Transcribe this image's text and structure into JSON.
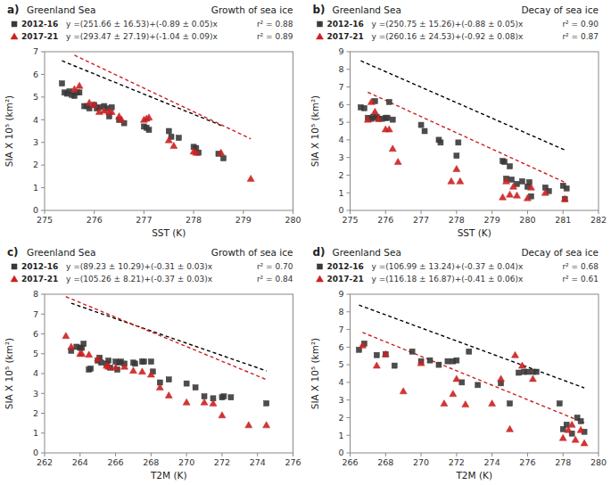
{
  "chart_data": [
    {
      "type": "scatter",
      "title": "Greenland Sea",
      "subtitle": "Growth of sea ice",
      "x_label": "SST (K)",
      "y_label": "SIA X 10⁵ (km²)",
      "annotations": [
        "a)",
        "y =(251.66 ± 16.53)+(-0.89 ± 0.05)x",
        "r² = 0.88",
        "y =(293.47 ± 27.19)+(-1.04 ± 0.09)x",
        "r² = 0.89"
      ],
      "xlim": [
        275,
        280
      ],
      "ylim": [
        0,
        7
      ],
      "xticks": [
        275,
        276,
        277,
        278,
        279,
        280
      ],
      "yticks": [
        0,
        1,
        2,
        3,
        4,
        5,
        6,
        7
      ],
      "grid": false,
      "legend": "top",
      "series": [
        {
          "name": "2012-16",
          "type": "scatter",
          "color": "#3a3a3a",
          "marker": "square",
          "x": [
            275.35,
            275.4,
            275.45,
            275.5,
            275.55,
            275.6,
            275.65,
            275.7,
            275.8,
            275.85,
            275.9,
            276.0,
            276.05,
            276.1,
            276.2,
            276.25,
            276.3,
            276.35,
            276.5,
            276.6,
            277.0,
            277.05,
            277.1,
            277.5,
            277.55,
            277.7,
            278.0,
            278.05,
            278.1,
            278.5,
            278.6
          ],
          "values": [
            5.6,
            5.2,
            5.15,
            5.25,
            5.1,
            5.05,
            5.2,
            5.2,
            4.6,
            4.6,
            4.5,
            4.65,
            4.5,
            4.55,
            4.6,
            4.5,
            4.15,
            4.55,
            4.0,
            3.85,
            3.7,
            3.65,
            3.55,
            3.5,
            3.25,
            3.2,
            2.8,
            2.75,
            2.55,
            2.5,
            2.3
          ]
        },
        {
          "name": "2017-21",
          "type": "scatter",
          "color": "#cc2020",
          "marker": "triangle",
          "x": [
            275.6,
            275.7,
            275.9,
            276.0,
            276.1,
            276.2,
            276.3,
            276.35,
            276.5,
            276.55,
            277.0,
            277.05,
            277.1,
            277.5,
            277.6,
            278.0,
            278.05,
            278.55,
            279.15
          ],
          "values": [
            5.35,
            5.5,
            4.75,
            4.65,
            4.35,
            4.4,
            4.35,
            4.35,
            4.15,
            4.0,
            4.0,
            4.05,
            4.1,
            3.1,
            2.85,
            2.6,
            2.55,
            2.55,
            1.4
          ]
        },
        {
          "type": "line",
          "color": "#000000",
          "line_style": "dashed",
          "x": [
            275.35,
            278.6
          ],
          "values": [
            6.5985,
            3.706
          ]
        },
        {
          "type": "line",
          "color": "#cc2020",
          "line_style": "dashed",
          "x": [
            275.6,
            279.15
          ],
          "values": [
            6.846,
            3.154
          ]
        }
      ]
    },
    {
      "type": "scatter",
      "title": "Greenland Sea",
      "subtitle": "Decay of sea ice",
      "x_label": "SST (K)",
      "y_label": "SIA X 10⁵ (km²)",
      "annotations": [
        "b)",
        "y =(250.75 ± 15.26)+(-0.88 ± 0.05)x",
        "r² = 0.90",
        "y =(260.16 ± 24.53)+(-0.92 ± 0.08)x",
        "r² = 0.87"
      ],
      "xlim": [
        275,
        282
      ],
      "ylim": [
        0,
        9
      ],
      "xticks": [
        275,
        276,
        277,
        278,
        279,
        280,
        281,
        282
      ],
      "yticks": [
        0,
        1,
        2,
        3,
        4,
        5,
        6,
        7,
        8,
        9
      ],
      "grid": false,
      "legend": "top",
      "series": [
        {
          "name": "2012-16",
          "type": "scatter",
          "color": "#3a3a3a",
          "marker": "square",
          "x": [
            275.3,
            275.4,
            275.5,
            275.6,
            275.65,
            275.7,
            275.75,
            275.8,
            275.9,
            276.0,
            276.05,
            276.1,
            276.2,
            277.0,
            277.1,
            277.5,
            277.55,
            278.0,
            278.05,
            279.3,
            279.35,
            279.4,
            279.5,
            279.55,
            279.7,
            279.85,
            280.0,
            280.05,
            280.1,
            280.5,
            280.6,
            281.0,
            281.05,
            281.1
          ],
          "values": [
            5.85,
            5.8,
            5.25,
            5.2,
            5.3,
            6.2,
            5.3,
            5.2,
            5.2,
            5.25,
            5.25,
            6.15,
            5.15,
            4.85,
            4.5,
            4.0,
            3.85,
            3.1,
            3.85,
            2.8,
            2.75,
            1.8,
            2.5,
            1.75,
            1.5,
            1.65,
            1.35,
            1.6,
            0.8,
            1.3,
            1.1,
            1.4,
            0.65,
            1.25
          ]
        },
        {
          "name": "2017-21",
          "type": "scatter",
          "color": "#cc2020",
          "marker": "triangle",
          "x": [
            275.5,
            275.6,
            275.7,
            275.8,
            276.0,
            276.1,
            276.2,
            276.35,
            277.85,
            278.0,
            278.1,
            279.3,
            279.4,
            279.5,
            279.6,
            279.7,
            280.0,
            280.1,
            280.5,
            281.05
          ],
          "values": [
            5.15,
            6.15,
            5.6,
            5.2,
            4.6,
            4.6,
            3.5,
            2.75,
            1.65,
            2.35,
            1.65,
            0.75,
            1.65,
            0.9,
            1.35,
            0.85,
            0.7,
            1.3,
            1.0,
            0.65
          ]
        },
        {
          "type": "line",
          "color": "#000000",
          "line_style": "dashed",
          "x": [
            275.3,
            281.1
          ],
          "values": [
            8.486,
            3.382
          ]
        },
        {
          "type": "line",
          "color": "#cc2020",
          "line_style": "dashed",
          "x": [
            275.5,
            281.05
          ],
          "values": [
            6.7,
            1.594
          ]
        }
      ]
    },
    {
      "type": "scatter",
      "title": "Greenland Sea",
      "subtitle": "Growth of sea ice",
      "x_label": "T2M (K)",
      "y_label": "SIA X 10⁵ (km²)",
      "annotations": [
        "c)",
        "y =(89.23 ± 10.29)+(-0.31 ± 0.03)x",
        "r² = 0.70",
        "y =(105.26 ± 8.21)+(-0.37 ± 0.03)x",
        "r² = 0.84"
      ],
      "xlim": [
        262,
        276
      ],
      "ylim": [
        0,
        8
      ],
      "xticks": [
        262,
        264,
        266,
        268,
        270,
        272,
        274,
        276
      ],
      "yticks": [
        0,
        1,
        2,
        3,
        4,
        5,
        6,
        7,
        8
      ],
      "grid": false,
      "legend": "top",
      "series": [
        {
          "name": "2012-16",
          "type": "scatter",
          "color": "#3a3a3a",
          "marker": "square",
          "x": [
            263.5,
            263.8,
            264.0,
            264.1,
            264.2,
            264.5,
            264.6,
            265.0,
            265.1,
            265.2,
            265.5,
            265.6,
            265.7,
            266.0,
            266.1,
            266.2,
            266.3,
            266.5,
            267.0,
            267.1,
            267.5,
            267.6,
            268.0,
            268.1,
            268.5,
            269.0,
            270.0,
            270.5,
            271.0,
            271.5,
            272.0,
            272.1,
            272.5,
            274.5
          ],
          "values": [
            5.15,
            5.35,
            5.3,
            5.3,
            5.5,
            4.2,
            4.25,
            4.65,
            4.8,
            4.55,
            4.5,
            4.65,
            4.3,
            4.6,
            4.2,
            4.55,
            4.6,
            4.5,
            4.55,
            4.5,
            4.6,
            4.6,
            4.6,
            4.1,
            3.55,
            3.7,
            3.5,
            3.3,
            2.85,
            2.75,
            2.8,
            2.85,
            2.8,
            2.5
          ]
        },
        {
          "name": "2017-21",
          "type": "scatter",
          "color": "#cc2020",
          "marker": "triangle",
          "x": [
            263.2,
            263.5,
            264.0,
            264.1,
            264.5,
            265.0,
            265.5,
            265.6,
            266.0,
            266.5,
            267.0,
            267.5,
            268.0,
            268.5,
            269.0,
            270.0,
            271.0,
            271.5,
            272.0,
            273.5,
            274.5
          ],
          "values": [
            5.9,
            5.35,
            5.0,
            5.0,
            4.95,
            4.75,
            4.4,
            4.35,
            4.3,
            4.35,
            4.15,
            4.1,
            3.95,
            3.3,
            2.9,
            2.55,
            2.55,
            2.5,
            1.9,
            1.4,
            1.4
          ]
        },
        {
          "type": "line",
          "color": "#000000",
          "line_style": "dashed",
          "x": [
            263.5,
            274.5
          ],
          "values": [
            7.545,
            4.135
          ]
        },
        {
          "type": "line",
          "color": "#cc2020",
          "line_style": "dashed",
          "x": [
            263.2,
            274.5
          ],
          "values": [
            7.876,
            3.695
          ]
        }
      ]
    },
    {
      "type": "scatter",
      "title": "Greenland Sea",
      "subtitle": "Decay of sea ice",
      "x_label": "T2M (K)",
      "y_label": "SIA X 10⁵ (km²)",
      "annotations": [
        "d)",
        "y =(106.99 ± 13.24)+(-0.37 ± 0.04)x",
        "r² = 0.68",
        "y =(116.18 ± 16.87)+(-0.41 ± 0.06)x",
        "r² = 0.61"
      ],
      "xlim": [
        266,
        280
      ],
      "ylim": [
        0,
        9
      ],
      "xticks": [
        266,
        268,
        270,
        272,
        274,
        276,
        278,
        280
      ],
      "yticks": [
        0,
        1,
        2,
        3,
        4,
        5,
        6,
        7,
        8,
        9
      ],
      "grid": false,
      "legend": "top",
      "series": [
        {
          "name": "2012-16",
          "type": "scatter",
          "color": "#3a3a3a",
          "marker": "square",
          "x": [
            266.5,
            266.8,
            267.5,
            268.0,
            268.5,
            269.5,
            270.0,
            270.5,
            271.0,
            271.5,
            271.8,
            272.0,
            272.3,
            272.7,
            273.2,
            274.5,
            275.0,
            275.5,
            275.8,
            276.0,
            276.3,
            276.5,
            277.8,
            278.0,
            278.2,
            278.5,
            278.8,
            279.0,
            279.2
          ],
          "values": [
            5.85,
            6.2,
            5.55,
            5.6,
            4.95,
            5.75,
            5.2,
            5.25,
            5.0,
            5.2,
            5.2,
            5.25,
            4.0,
            5.75,
            3.85,
            3.95,
            2.8,
            4.55,
            4.6,
            4.6,
            4.6,
            4.6,
            2.8,
            1.35,
            1.6,
            1.1,
            2.0,
            1.8,
            1.2
          ]
        },
        {
          "name": "2017-21",
          "type": "scatter",
          "color": "#cc2020",
          "marker": "triangle",
          "x": [
            266.7,
            267.5,
            268.0,
            269.0,
            270.0,
            271.3,
            271.8,
            272.0,
            272.5,
            274.0,
            274.5,
            275.0,
            275.3,
            275.7,
            276.3,
            278.0,
            278.3,
            278.5,
            278.7,
            279.0,
            279.2
          ],
          "values": [
            6.1,
            4.95,
            5.6,
            3.5,
            5.1,
            2.8,
            3.35,
            4.2,
            2.75,
            2.8,
            4.2,
            1.35,
            5.55,
            4.95,
            4.2,
            0.85,
            1.3,
            1.6,
            0.75,
            1.3,
            0.55
          ]
        },
        {
          "type": "line",
          "color": "#000000",
          "line_style": "dashed",
          "x": [
            266.5,
            279.2
          ],
          "values": [
            8.385,
            3.686
          ]
        },
        {
          "type": "line",
          "color": "#cc2020",
          "line_style": "dashed",
          "x": [
            266.7,
            279.2
          ],
          "values": [
            6.833,
            1.708
          ]
        }
      ]
    }
  ]
}
